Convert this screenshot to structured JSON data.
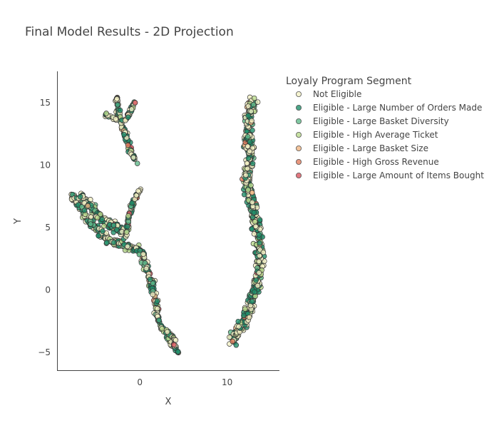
{
  "chart_data": {
    "type": "scatter",
    "title": "Final Model Results - 2D Projection",
    "xlabel": "X",
    "ylabel": "Y",
    "xlim": [
      -9.5,
      16
    ],
    "ylim": [
      -6.5,
      17.5
    ],
    "x_ticks": [
      0,
      10
    ],
    "y_ticks": [
      -5,
      0,
      5,
      10,
      15
    ],
    "legend_title": "Loyaly Program Segment",
    "legend_position": "right",
    "grid": false,
    "series": [
      {
        "name": "Not Eligible",
        "color": "#f2f0c4"
      },
      {
        "name": "Eligible - Large Number of Orders Made",
        "color": "#1f8f6a"
      },
      {
        "name": "Eligible - Large Basket Diversity",
        "color": "#5fb98a"
      },
      {
        "name": "Eligible - High Average Ticket",
        "color": "#b9d98c"
      },
      {
        "name": "Eligible - Large Basket Size",
        "color": "#f0b482"
      },
      {
        "name": "Eligible - High Gross Revenue",
        "color": "#e27c5c"
      },
      {
        "name": "Eligible - Large Amount of Items Bought",
        "color": "#d9555f"
      }
    ],
    "clusters": [
      {
        "name": "upper-left",
        "path": [
          [
            -2.7,
            15.4
          ],
          [
            -2.6,
            14.5
          ],
          [
            -2.2,
            13.6
          ],
          [
            -1.8,
            12.6
          ],
          [
            -1.3,
            11.6
          ],
          [
            -0.9,
            10.8
          ],
          [
            -0.3,
            10.3
          ]
        ],
        "spread": 0.35
      },
      {
        "name": "upper-left-arm-left",
        "path": [
          [
            -4.0,
            14.1
          ],
          [
            -3.3,
            13.9
          ],
          [
            -2.6,
            13.6
          ]
        ],
        "spread": 0.25
      },
      {
        "name": "upper-left-arm-right",
        "path": [
          [
            -0.6,
            15.2
          ],
          [
            -1.0,
            14.4
          ],
          [
            -1.6,
            13.6
          ]
        ],
        "spread": 0.25
      },
      {
        "name": "left-branch",
        "path": [
          [
            -7.8,
            7.6
          ],
          [
            -6.8,
            6.6
          ],
          [
            -5.8,
            5.5
          ],
          [
            -4.6,
            4.6
          ],
          [
            -3.4,
            4.0
          ],
          [
            -2.0,
            3.6
          ],
          [
            -0.8,
            3.4
          ],
          [
            0.2,
            3.1
          ],
          [
            0.8,
            1.6
          ],
          [
            1.4,
            0.4
          ],
          [
            1.8,
            -0.8
          ],
          [
            1.9,
            -1.8
          ]
        ],
        "spread": 0.45
      },
      {
        "name": "left-blob",
        "path": [
          [
            -6.8,
            7.6
          ],
          [
            -5.8,
            6.8
          ],
          [
            -4.8,
            6.0
          ],
          [
            -3.8,
            5.4
          ],
          [
            -2.8,
            5.0
          ],
          [
            -1.6,
            4.6
          ]
        ],
        "spread": 0.55
      },
      {
        "name": "left-fork-up",
        "path": [
          [
            -1.6,
            4.4
          ],
          [
            -1.4,
            5.4
          ],
          [
            -1.0,
            6.6
          ],
          [
            -0.3,
            7.6
          ],
          [
            0.0,
            8.0
          ]
        ],
        "spread": 0.25
      },
      {
        "name": "left-tail",
        "path": [
          [
            1.9,
            -2.0
          ],
          [
            2.4,
            -2.9
          ],
          [
            3.0,
            -3.6
          ],
          [
            3.8,
            -4.4
          ],
          [
            4.5,
            -5.1
          ]
        ],
        "spread": 0.22
      },
      {
        "name": "left-tail-arm",
        "path": [
          [
            3.0,
            -3.3
          ],
          [
            3.8,
            -3.8
          ],
          [
            4.1,
            -4.1
          ]
        ],
        "spread": 0.15
      },
      {
        "name": "right-column",
        "path": [
          [
            10.4,
            -4.0
          ],
          [
            11.4,
            -3.2
          ],
          [
            12.2,
            -2.3
          ],
          [
            12.8,
            -0.8
          ],
          [
            13.5,
            0.8
          ],
          [
            13.8,
            2.5
          ],
          [
            13.6,
            4.2
          ],
          [
            13.2,
            5.6
          ],
          [
            12.7,
            7.2
          ],
          [
            12.3,
            8.8
          ],
          [
            12.6,
            10.4
          ],
          [
            12.4,
            12.0
          ],
          [
            12.5,
            13.4
          ],
          [
            12.8,
            14.6
          ],
          [
            12.9,
            15.4
          ]
        ],
        "spread": 0.7
      }
    ]
  }
}
